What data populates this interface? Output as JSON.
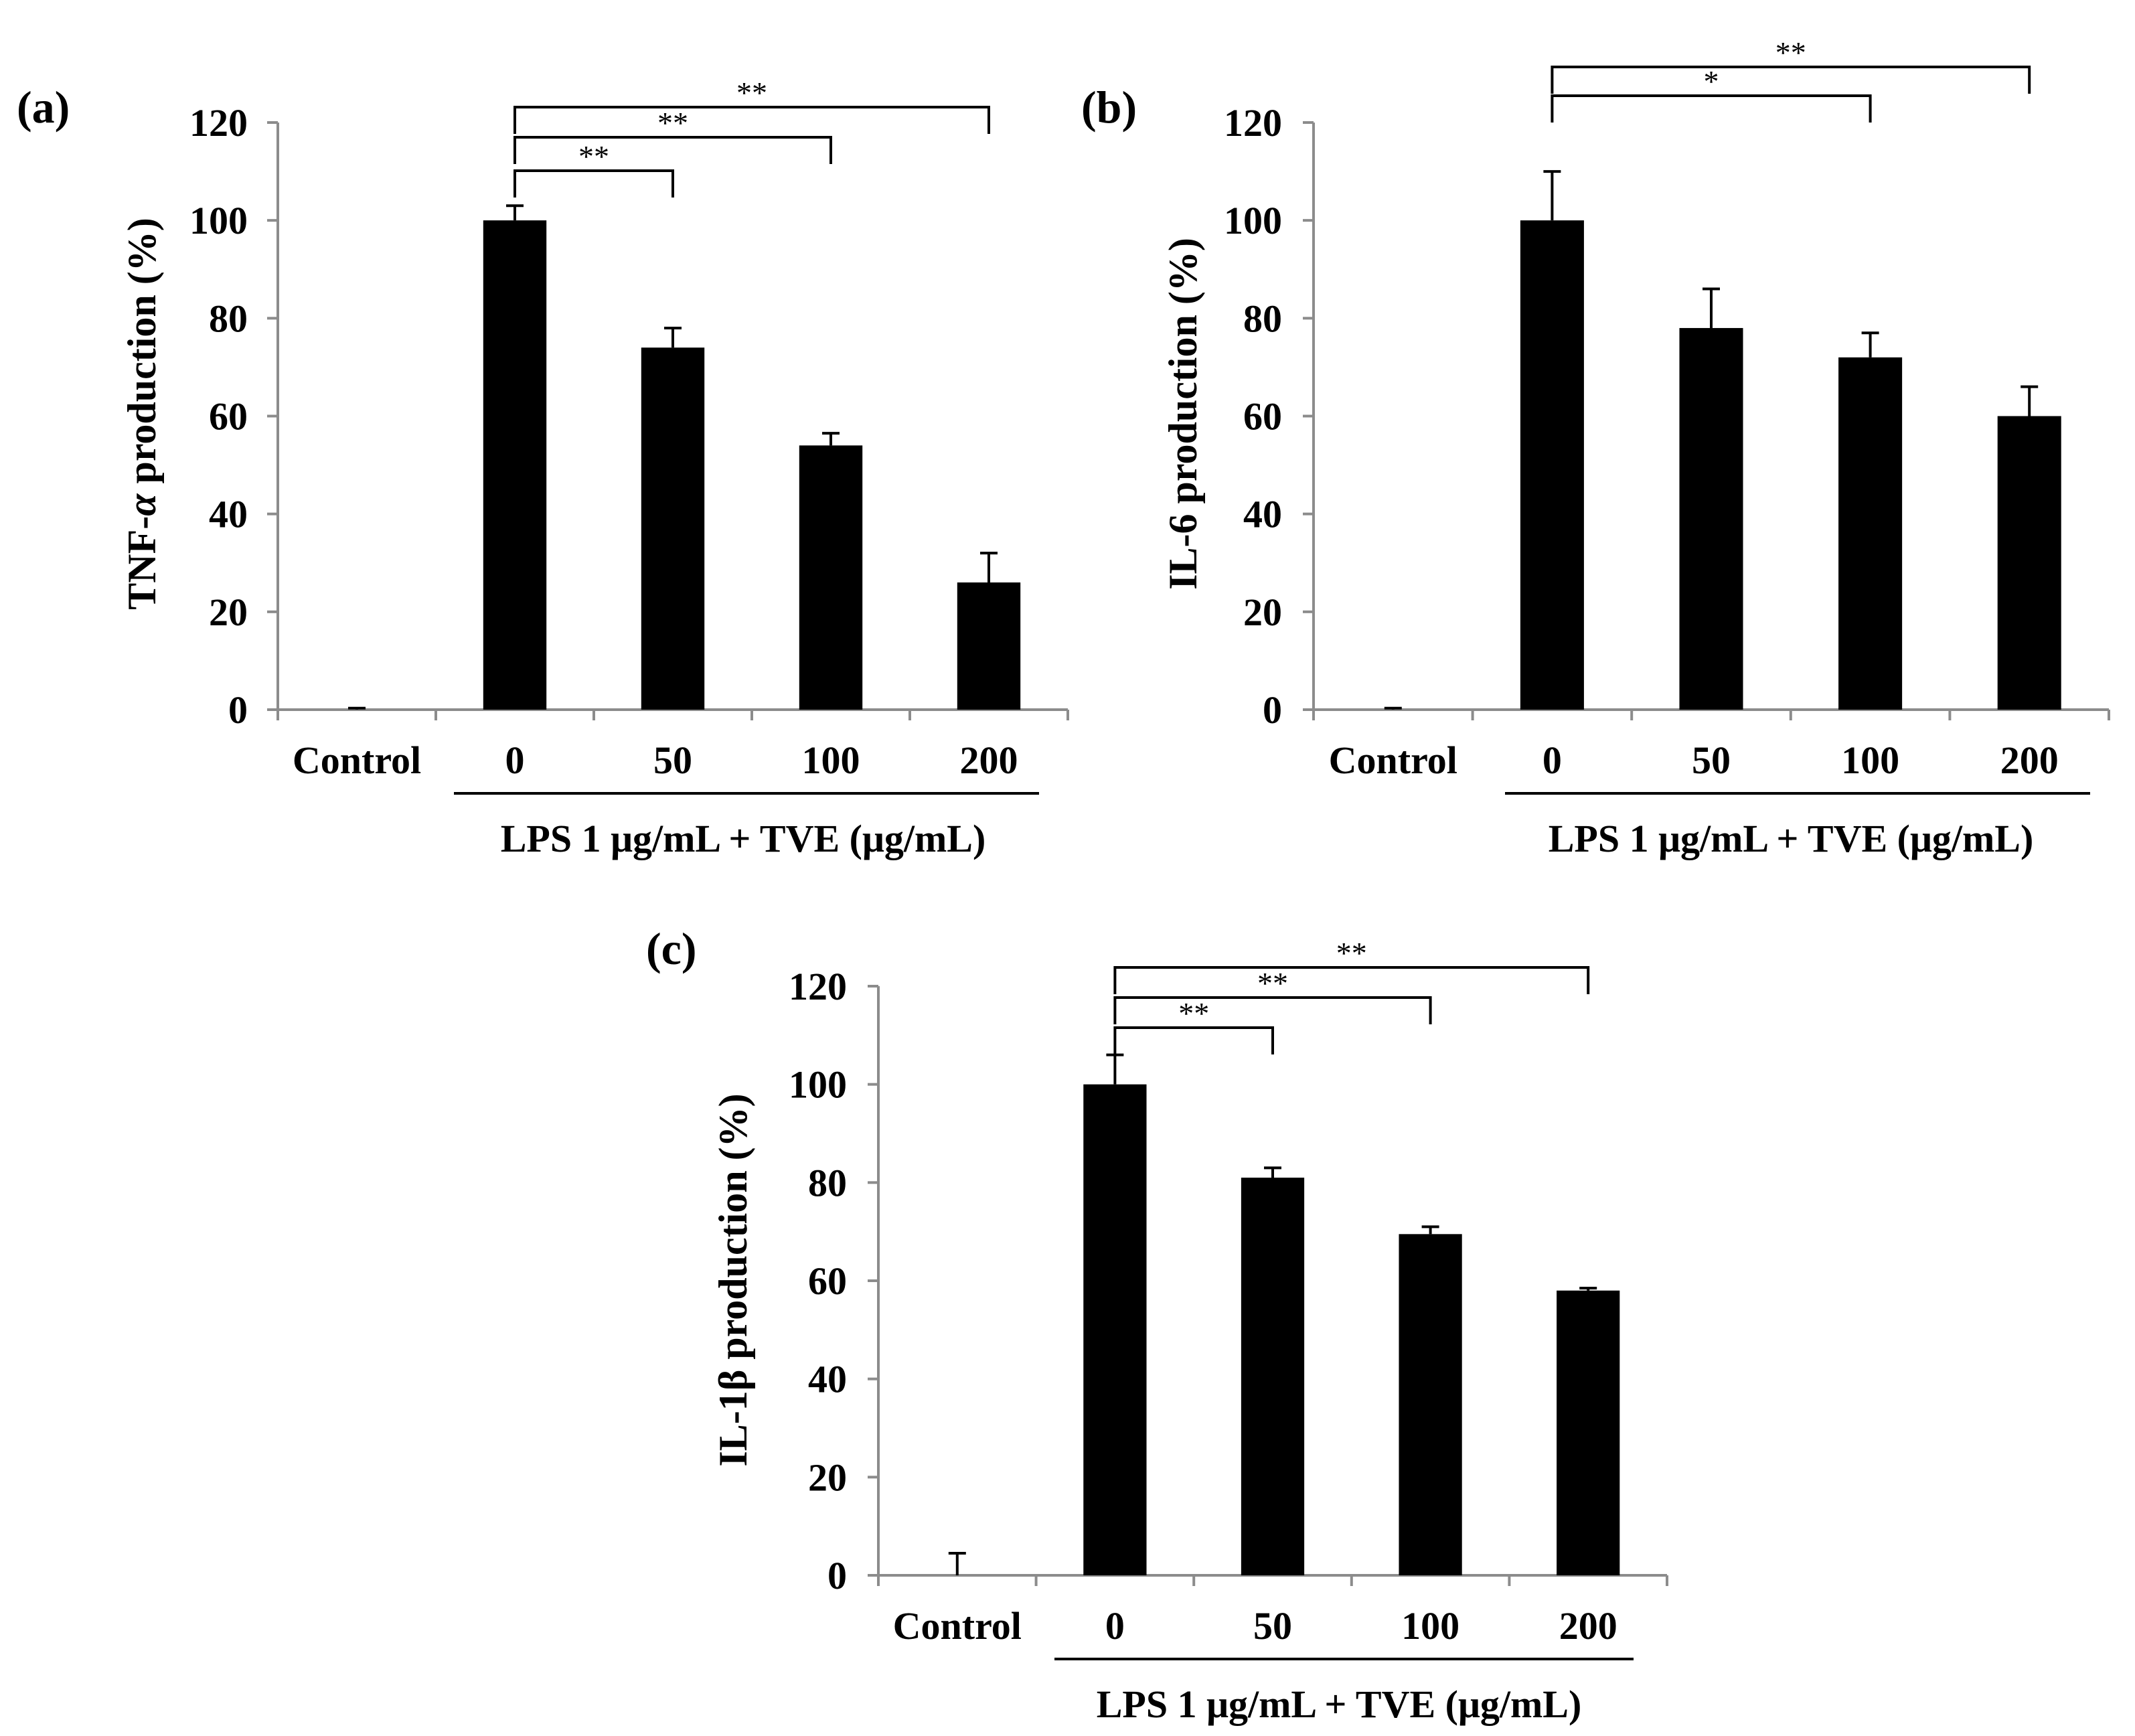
{
  "figure": {
    "panels": [
      "a",
      "b",
      "c"
    ]
  },
  "chart_data": [
    {
      "type": "bar",
      "panel_label": "(a)",
      "ylabel": "TNF-α production (%)",
      "ylabel_prefix": "TNF-",
      "ylabel_greek": "α",
      "ylabel_suffix": " production (%)",
      "categories": [
        "Control",
        "0",
        "50",
        "100",
        "200"
      ],
      "values": [
        0,
        100,
        74,
        54,
        26
      ],
      "errors": [
        0.3,
        3,
        4,
        2.5,
        6
      ],
      "ylim": [
        0,
        120
      ],
      "yticks": [
        "0",
        "20",
        "40",
        "60",
        "80",
        "100",
        "120"
      ],
      "group_label": "LPS 1 μg/mL + TVE (μg/mL)",
      "bar_color": "#000000",
      "significance": [
        {
          "from": 1,
          "to": 2,
          "label": "**"
        },
        {
          "from": 1,
          "to": 3,
          "label": "**"
        },
        {
          "from": 1,
          "to": 4,
          "label": "**"
        }
      ]
    },
    {
      "type": "bar",
      "panel_label": "(b)",
      "ylabel": "IL-6 production (%)",
      "categories": [
        "Control",
        "0",
        "50",
        "100",
        "200"
      ],
      "values": [
        0,
        100,
        78,
        72,
        60
      ],
      "errors": [
        0.3,
        10,
        8,
        5,
        6
      ],
      "ylim": [
        0,
        120
      ],
      "yticks": [
        "0",
        "20",
        "40",
        "60",
        "80",
        "100",
        "120"
      ],
      "group_label": "LPS 1 μg/mL + TVE (μg/mL)",
      "bar_color": "#000000",
      "significance": [
        {
          "from": 1,
          "to": 3,
          "label": "*"
        },
        {
          "from": 1,
          "to": 4,
          "label": "**"
        }
      ]
    },
    {
      "type": "bar",
      "panel_label": "(c)",
      "ylabel": "IL-1β production (%)",
      "categories": [
        "Control",
        "0",
        "50",
        "100",
        "200"
      ],
      "values": [
        0,
        100,
        81,
        69.5,
        58
      ],
      "errors": [
        4.5,
        6,
        2,
        1.5,
        0.5
      ],
      "ylim": [
        0,
        120
      ],
      "yticks": [
        "0",
        "20",
        "40",
        "60",
        "80",
        "100",
        "120"
      ],
      "group_label": "LPS 1 μg/mL + TVE (μg/mL)",
      "bar_color": "#000000",
      "significance": [
        {
          "from": 1,
          "to": 2,
          "label": "**"
        },
        {
          "from": 1,
          "to": 3,
          "label": "**"
        },
        {
          "from": 1,
          "to": 4,
          "label": "**"
        }
      ]
    }
  ]
}
